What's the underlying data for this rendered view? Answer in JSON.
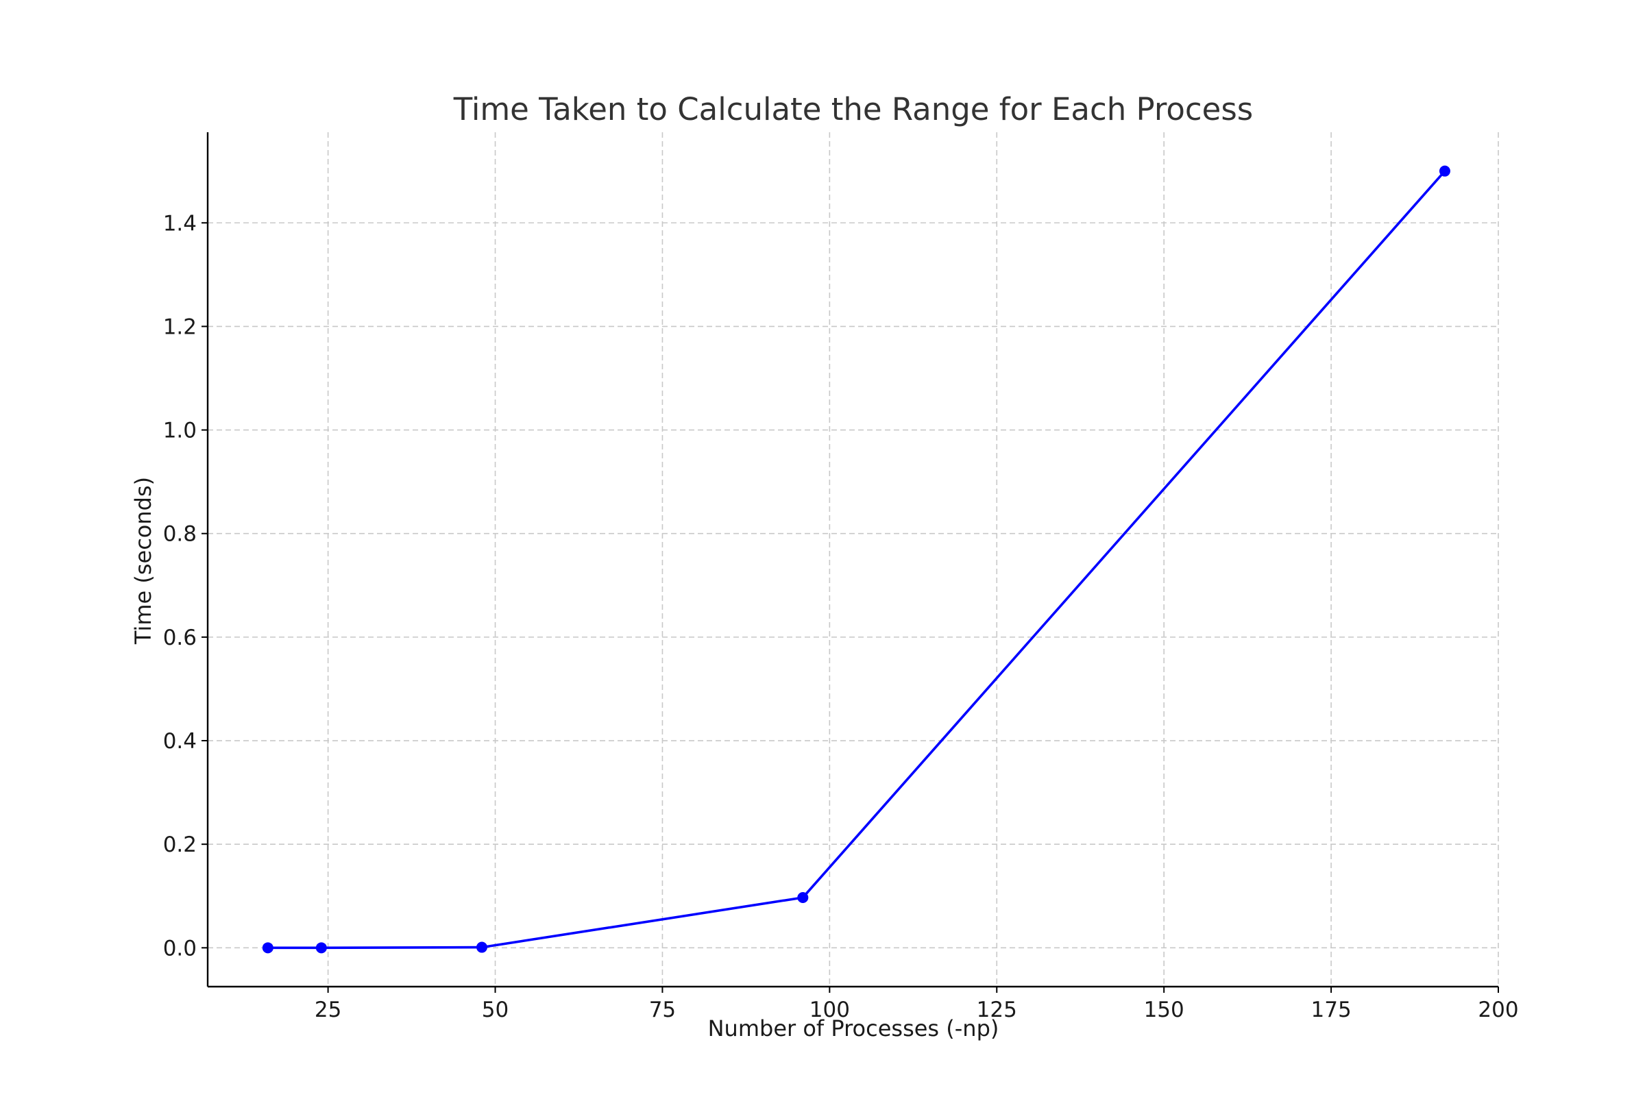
{
  "chart_data": {
    "type": "line",
    "title": "Time Taken to Calculate the Range for Each Process",
    "xlabel": "Number of Processes (-np)",
    "ylabel": "Time (seconds)",
    "xlim": [
      7,
      200
    ],
    "ylim": [
      -0.075,
      1.575
    ],
    "x_ticks": [
      25,
      50,
      75,
      100,
      125,
      150,
      175,
      200
    ],
    "x_tick_labels": [
      "25",
      "50",
      "75",
      "100",
      "125",
      "150",
      "175",
      "200"
    ],
    "y_ticks": [
      0.0,
      0.2,
      0.4,
      0.6,
      0.8,
      1.0,
      1.2,
      1.4
    ],
    "y_tick_labels": [
      "0.0",
      "0.2",
      "0.4",
      "0.6",
      "0.8",
      "1.0",
      "1.2",
      "1.4"
    ],
    "grid": true,
    "series": [
      {
        "color": "#0000ff",
        "marker": "circle",
        "x": [
          16,
          24,
          48,
          96,
          192
        ],
        "y": [
          0.0,
          0.0,
          0.001,
          0.097,
          1.5
        ]
      }
    ]
  }
}
